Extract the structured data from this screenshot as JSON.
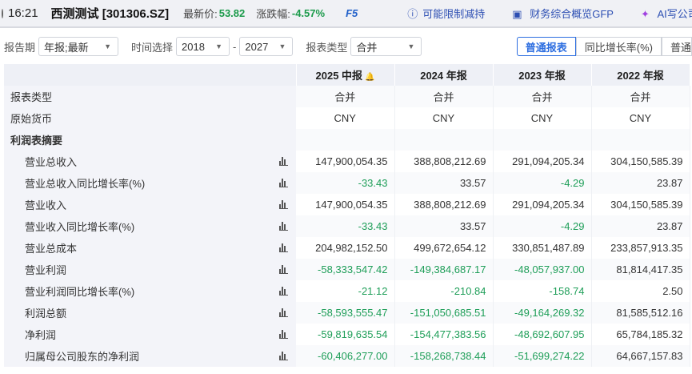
{
  "topbar": {
    "time": "16:21",
    "stock": "西测测试 [301306.SZ]",
    "price_label": "最新价:",
    "price": "53.82",
    "change_label": "涨跌幅:",
    "change": "-4.57%",
    "f5": "F5",
    "links": [
      "可能限制减持",
      "财务综合概览GFP",
      "AI写公司"
    ]
  },
  "filters": {
    "period_label": "报告期",
    "period": "年报;最新",
    "time_label": "时间选择",
    "from": "2018",
    "dash": "-",
    "to": "2027",
    "type_label": "报表类型",
    "type": "合并",
    "tabs": [
      "普通报表",
      "同比增长率(%)",
      "普通"
    ]
  },
  "colors": {
    "negative": "#1e9e58",
    "accent": "#2d6ee0"
  },
  "table": {
    "columns": [
      "2025 中报",
      "2024 年报",
      "2023 年报",
      "2022 年报"
    ],
    "rows": [
      {
        "label": "报表类型",
        "values": [
          "合并",
          "合并",
          "合并",
          "合并"
        ]
      },
      {
        "label": "原始货币",
        "values": [
          "CNY",
          "CNY",
          "CNY",
          "CNY"
        ]
      },
      {
        "label": "利润表摘要",
        "values": [
          "",
          "",
          "",
          ""
        ]
      },
      {
        "label": "营业总收入",
        "values": [
          "147,900,054.35",
          "388,808,212.69",
          "291,094,205.34",
          "304,150,585.39"
        ]
      },
      {
        "label": "营业总收入同比增长率(%)",
        "values": [
          "-33.43",
          "33.57",
          "-4.29",
          "23.87"
        ]
      },
      {
        "label": "营业收入",
        "values": [
          "147,900,054.35",
          "388,808,212.69",
          "291,094,205.34",
          "304,150,585.39"
        ]
      },
      {
        "label": "营业收入同比增长率(%)",
        "values": [
          "-33.43",
          "33.57",
          "-4.29",
          "23.87"
        ]
      },
      {
        "label": "营业总成本",
        "values": [
          "204,982,152.50",
          "499,672,654.12",
          "330,851,487.89",
          "233,857,913.35"
        ]
      },
      {
        "label": "营业利润",
        "values": [
          "-58,333,547.42",
          "-149,384,687.17",
          "-48,057,937.00",
          "81,814,417.35"
        ]
      },
      {
        "label": "营业利润同比增长率(%)",
        "values": [
          "-21.12",
          "-210.84",
          "-158.74",
          "2.50"
        ]
      },
      {
        "label": "利润总额",
        "values": [
          "-58,593,555.47",
          "-151,050,685.51",
          "-49,164,269.32",
          "81,585,512.16"
        ]
      },
      {
        "label": "净利润",
        "values": [
          "-59,819,635.54",
          "-154,477,383.56",
          "-48,692,607.95",
          "65,784,185.32"
        ]
      },
      {
        "label": "归属母公司股东的净利润",
        "values": [
          "-60,406,277.00",
          "-158,268,738.44",
          "-51,699,274.22",
          "64,667,157.83"
        ]
      }
    ]
  }
}
